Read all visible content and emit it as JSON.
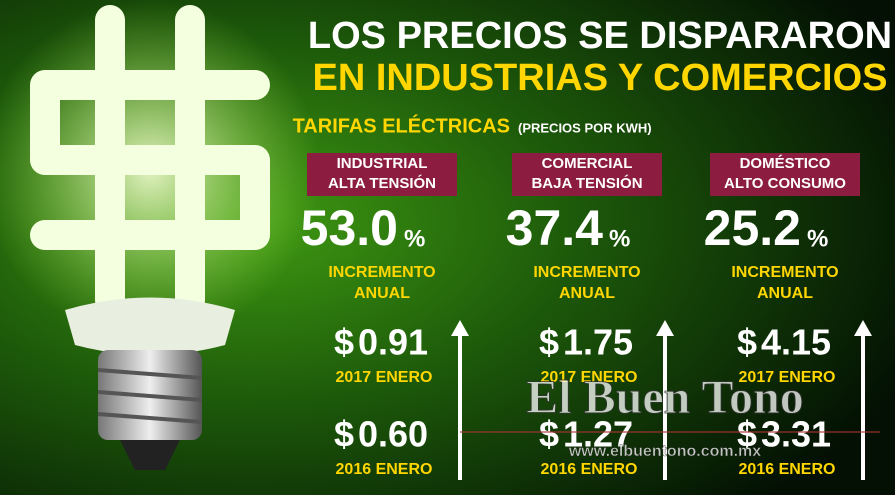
{
  "header": {
    "title_lines": [
      "LOS PRECIOS SE DISPARARON",
      "EN INDUSTRIAS Y COMERCIOS"
    ],
    "subtitle": "TARIFAS ELÉCTRICAS",
    "subtitle_note": "(PRECIOS POR KWH)"
  },
  "columns": [
    {
      "label_lines": [
        "INDUSTRIAL",
        "ALTA TENSIÓN"
      ],
      "percent": "53.0",
      "percent_unit": "%",
      "caption_lines": [
        "INCREMENTO",
        "ANUAL"
      ],
      "prices": [
        {
          "currency": "$",
          "amount": "0.91",
          "period": "2017 ENERO"
        },
        {
          "currency": "$",
          "amount": "0.60",
          "period": "2016 ENERO"
        }
      ]
    },
    {
      "label_lines": [
        "COMERCIAL",
        "BAJA TENSIÓN"
      ],
      "percent": "37.4",
      "percent_unit": "%",
      "caption_lines": [
        "INCREMENTO",
        "ANUAL"
      ],
      "prices": [
        {
          "currency": "$",
          "amount": "1.75",
          "period": "2017 ENERO"
        },
        {
          "currency": "$",
          "amount": "1.27",
          "period": "2016 ENERO"
        }
      ]
    },
    {
      "label_lines": [
        "DOMÉSTICO",
        "ALTO CONSUMO"
      ],
      "percent": "25.2",
      "percent_unit": "%",
      "caption_lines": [
        "INCREMENTO",
        "ANUAL"
      ],
      "prices": [
        {
          "currency": "$",
          "amount": "4.15",
          "period": "2017 ENERO"
        },
        {
          "currency": "$",
          "amount": "3.31",
          "period": "2016 ENERO"
        }
      ]
    }
  ],
  "watermark": {
    "name": "El Buen Tono",
    "url": "www.elbuentono.com.mx"
  }
}
